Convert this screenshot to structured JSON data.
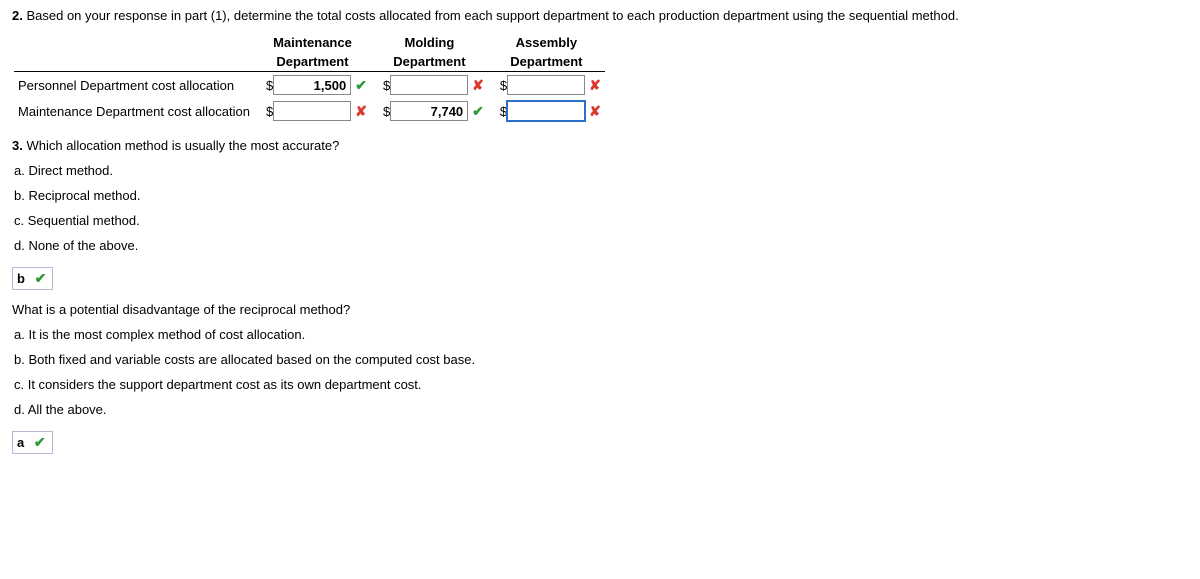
{
  "q2": {
    "number": "2.",
    "prompt": "Based on your response in part (1), determine the total costs allocated from each support department to each production department using the sequential method.",
    "headers": {
      "col1_l1": "Maintenance",
      "col1_l2": "Department",
      "col2_l1": "Molding",
      "col2_l2": "Department",
      "col3_l1": "Assembly",
      "col3_l2": "Department"
    },
    "rows": [
      {
        "label": "Personnel Department cost allocation",
        "cells": [
          {
            "currency": "$",
            "value": "1,500",
            "mark": "correct"
          },
          {
            "currency": "$",
            "value": "",
            "mark": "wrong"
          },
          {
            "currency": "$",
            "value": "",
            "mark": "wrong"
          }
        ]
      },
      {
        "label": "Maintenance Department cost allocation",
        "cells": [
          {
            "currency": "$",
            "value": "",
            "mark": "wrong"
          },
          {
            "currency": "$",
            "value": "7,740",
            "mark": "correct"
          },
          {
            "currency": "$",
            "value": "",
            "mark": "wrong",
            "focused": true
          }
        ]
      }
    ]
  },
  "q3": {
    "number": "3.",
    "prompt": "Which allocation method is usually the most accurate?",
    "options": [
      "a. Direct method.",
      "b. Reciprocal method.",
      "c. Sequential method.",
      "d. None of the above."
    ],
    "answer_letter": "b",
    "answer_mark": "correct"
  },
  "q3b": {
    "prompt": "What is a potential disadvantage of the reciprocal method?",
    "options": [
      "a. It is the most complex method of cost allocation.",
      "b. Both fixed and variable costs are allocated based on the computed cost base.",
      "c. It considers the support department cost as its own department cost.",
      "d. All the above."
    ],
    "answer_letter": "a",
    "answer_mark": "correct"
  },
  "glyphs": {
    "correct": "✔",
    "wrong": "✘"
  }
}
